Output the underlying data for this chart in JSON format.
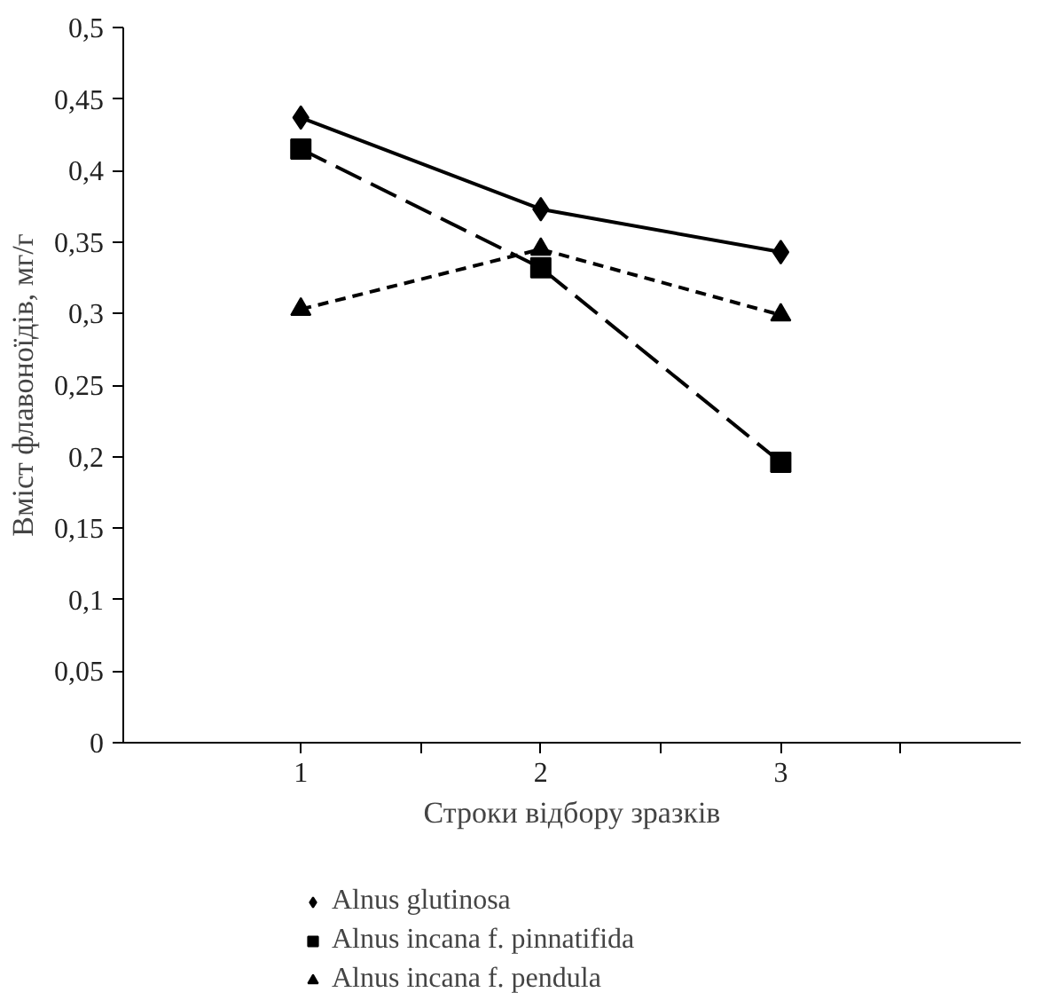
{
  "chart_data": {
    "type": "line",
    "xlabel": "Строки відбору зразків",
    "ylabel": "Вміст флавоноїдів, мг/г",
    "x": [
      1,
      2,
      3
    ],
    "series": [
      {
        "name": "Alnus glutinosa",
        "color": "#000000",
        "marker": "diamond",
        "line_style": "solid",
        "values": [
          0.437,
          0.373,
          0.343
        ]
      },
      {
        "name": "Alnus incana f. pinnatifida",
        "color": "#000000",
        "marker": "square",
        "line_style": "longdash",
        "values": [
          0.415,
          0.332,
          0.196
        ]
      },
      {
        "name": "Alnus incana f. pendula",
        "color": "#000000",
        "marker": "triangle",
        "line_style": "dashed",
        "values": [
          0.303,
          0.345,
          0.299
        ]
      }
    ],
    "xlim": [
      0.26,
      4.0
    ],
    "xticks": [
      1,
      2,
      3,
      {
        "value": 1.5,
        "label": null
      },
      {
        "value": 2.5,
        "label": null
      },
      {
        "value": 3.5,
        "label": null
      }
    ],
    "ylim": [
      0,
      0.5
    ],
    "yticks": [
      {
        "value": 0,
        "label": "0"
      },
      {
        "value": 0.05,
        "label": "0,05"
      },
      {
        "value": 0.1,
        "label": "0,1"
      },
      {
        "value": 0.15,
        "label": "0,15"
      },
      {
        "value": 0.2,
        "label": "0,2"
      },
      {
        "value": 0.25,
        "label": "0,25"
      },
      {
        "value": 0.3,
        "label": "0,3"
      },
      {
        "value": 0.35,
        "label": "0,35"
      },
      {
        "value": 0.4,
        "label": "0,4"
      },
      {
        "value": 0.45,
        "label": "0,45"
      },
      {
        "value": 0.5,
        "label": "0,5"
      }
    ],
    "grid": false,
    "legend": "bottom"
  }
}
